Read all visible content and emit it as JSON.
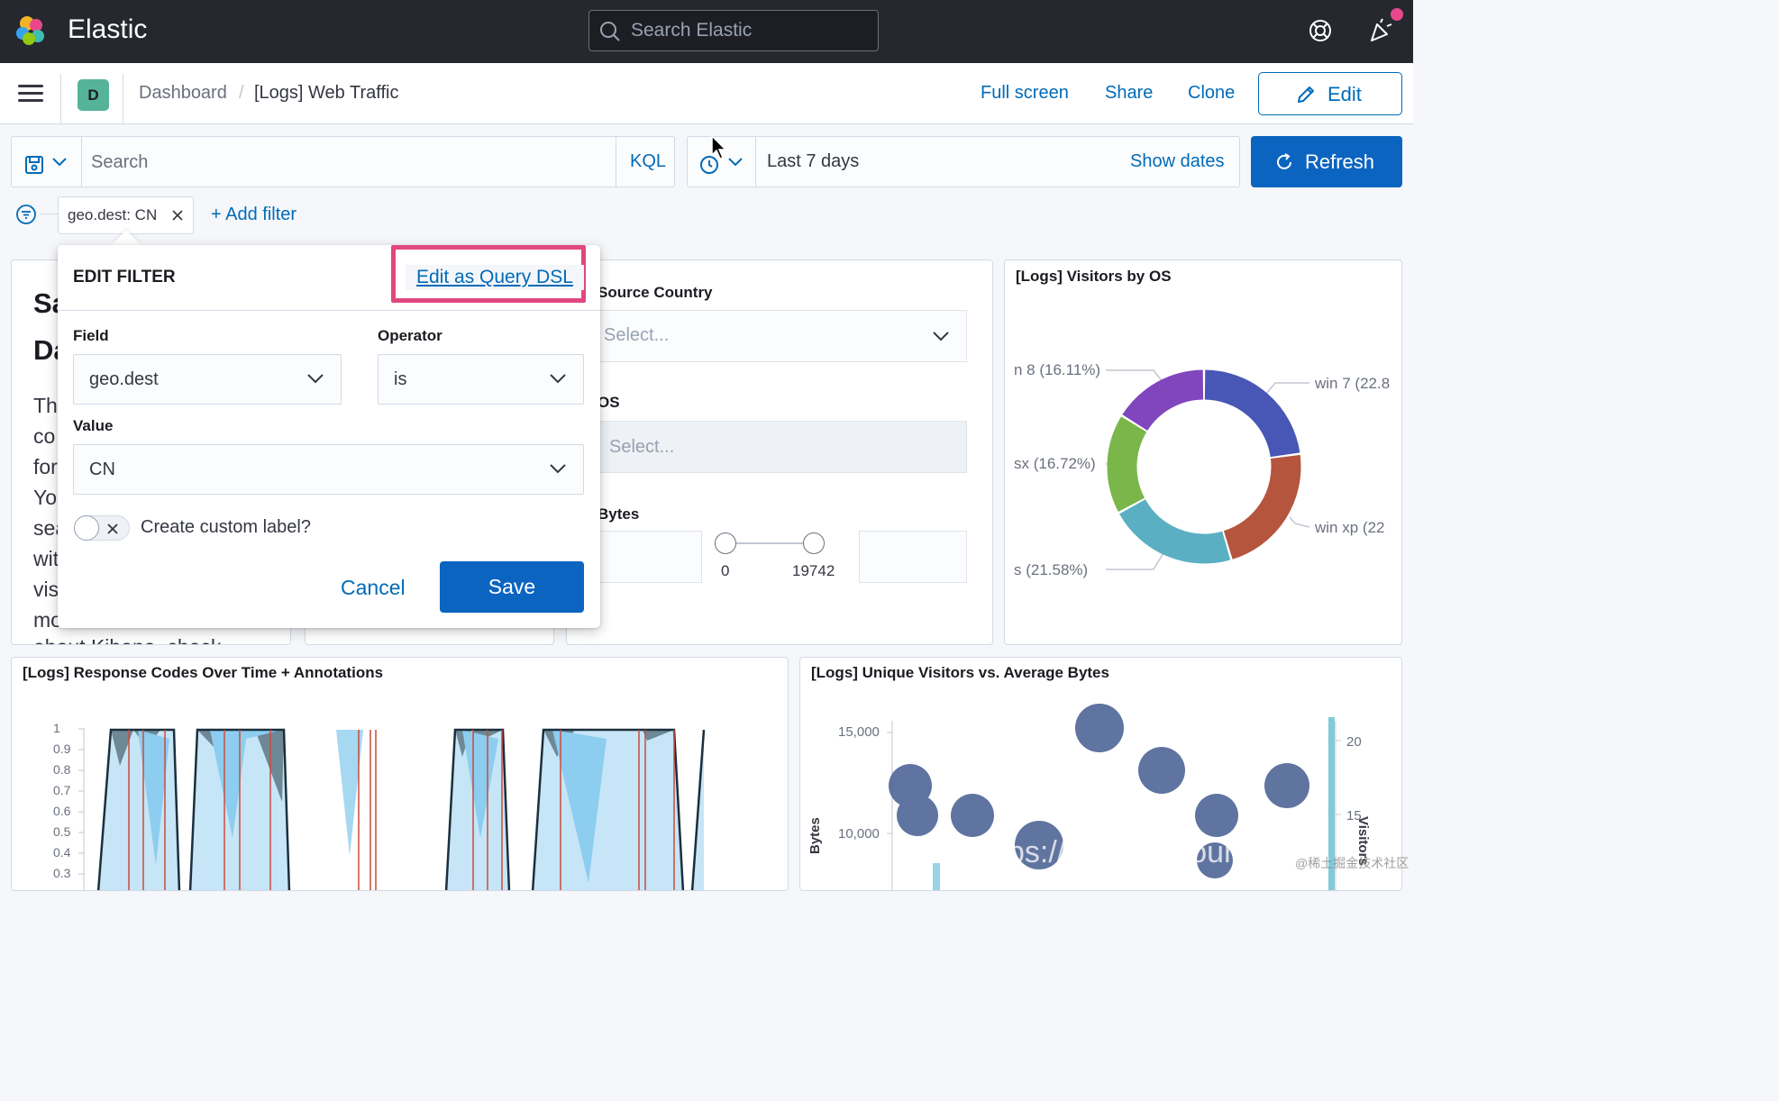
{
  "header": {
    "brand": "Elastic",
    "search_placeholder": "Search Elastic"
  },
  "nav": {
    "space_initial": "D",
    "breadcrumb_root": "Dashboard",
    "breadcrumb_separator": "/",
    "breadcrumb_current": "[Logs] Web Traffic",
    "full_screen": "Full screen",
    "share": "Share",
    "clone": "Clone",
    "edit": "Edit"
  },
  "query": {
    "placeholder": "Search",
    "language": "KQL"
  },
  "time": {
    "range": "Last 7 days",
    "show_dates": "Show dates",
    "refresh": "Refresh"
  },
  "filters": {
    "pill_label": "geo.dest: CN",
    "add_filter": "+ Add filter"
  },
  "markdown_panel": {
    "heading_lines": [
      "Sa",
      "Da"
    ],
    "text_lines": [
      "Th",
      "co",
      "for",
      "Yo",
      "sea",
      "wit",
      "vis",
      "mo",
      "about Kibana, check"
    ]
  },
  "controls_panel": {
    "source_country_label": "Source Country",
    "source_country_placeholder": "Select...",
    "os_label": "OS",
    "os_placeholder": "Select...",
    "bytes_label": "Bytes",
    "bytes_min": "0",
    "bytes_max": "19742"
  },
  "os_panel": {
    "title": "[Logs] Visitors by OS",
    "labels": {
      "win8": "n 8 (16.11%)",
      "osx": "sx (16.72%)",
      "ios": "s (21.58%)",
      "win7": "win 7 (22.8",
      "winxp": "win xp (22"
    },
    "colors": [
      "#4856b5",
      "#b5553e",
      "#5ab0c2",
      "#7ab64a",
      "#7f46bd"
    ],
    "shares": [
      0.228,
      0.225,
      0.216,
      0.167,
      0.161
    ]
  },
  "response_panel": {
    "title": "[Logs] Response Codes Over Time + Annotations",
    "y_ticks": [
      "1",
      "0.9",
      "0.8",
      "0.7",
      "0.6",
      "0.5",
      "0.4",
      "0.3"
    ]
  },
  "visitors_panel": {
    "title": "[Logs] Unique Visitors vs. Average Bytes",
    "y_ticks": [
      "15,000",
      "10,000"
    ],
    "y_label": "Bytes",
    "right_ticks": [
      "20",
      "15"
    ],
    "right_label": "Visitors"
  },
  "edit_filter": {
    "title": "EDIT FILTER",
    "dsl_link": "Edit as Query DSL",
    "field_label": "Field",
    "field_value": "geo.dest",
    "operator_label": "Operator",
    "operator_value": "is",
    "value_label": "Value",
    "value_value": "CN",
    "custom_label_toggle": "Create custom label?",
    "cancel": "Cancel",
    "save": "Save"
  },
  "watermark": {
    "url_fragment": "ps://blog.     et/couri",
    "site": "@稀土掘金技术社区"
  }
}
